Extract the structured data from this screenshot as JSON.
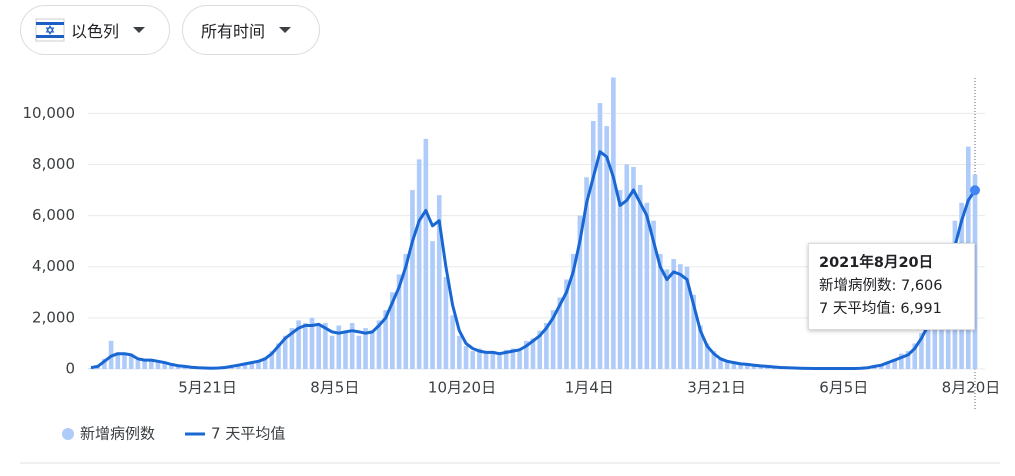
{
  "controls": {
    "region": "以色列",
    "period": "所有时间"
  },
  "chart_data": {
    "type": "bar-line",
    "categories": [
      null,
      null,
      null,
      null,
      null,
      null,
      null,
      null,
      null,
      null,
      null,
      null,
      null,
      null,
      null,
      null,
      null,
      null,
      "5月21日",
      null,
      null,
      null,
      null,
      null,
      null,
      null,
      null,
      null,
      null,
      null,
      null,
      null,
      null,
      null,
      null,
      null,
      null,
      "8月5日",
      null,
      null,
      null,
      null,
      null,
      null,
      null,
      null,
      null,
      null,
      null,
      null,
      null,
      null,
      null,
      null,
      null,
      null,
      "10月20日",
      null,
      null,
      null,
      null,
      null,
      null,
      null,
      null,
      null,
      null,
      null,
      null,
      null,
      null,
      null,
      null,
      null,
      null,
      "1月4日",
      null,
      null,
      null,
      null,
      null,
      null,
      null,
      null,
      null,
      null,
      null,
      null,
      null,
      null,
      null,
      null,
      null,
      null,
      "3月21日",
      null,
      null,
      null,
      null,
      null,
      null,
      null,
      null,
      null,
      null,
      null,
      null,
      null,
      null,
      null,
      null,
      null,
      null,
      "6月5日",
      null,
      null,
      null,
      null,
      null,
      null,
      null,
      null,
      null,
      null,
      null,
      null,
      null,
      null,
      null,
      null,
      null,
      null,
      "8月20日"
    ],
    "series": [
      {
        "name": "新增病例数",
        "type": "bar",
        "color": "#aecbfa",
        "values": [
          30,
          150,
          400,
          1100,
          650,
          550,
          600,
          350,
          400,
          300,
          280,
          220,
          200,
          120,
          90,
          80,
          40,
          30,
          20,
          50,
          70,
          120,
          180,
          230,
          300,
          280,
          450,
          700,
          1000,
          1300,
          1600,
          1900,
          1800,
          2000,
          1700,
          1800,
          1300,
          1700,
          1500,
          1800,
          1300,
          1600,
          1500,
          1900,
          2300,
          3000,
          3700,
          4500,
          7000,
          8200,
          9000,
          5000,
          6800,
          3600,
          2100,
          1300,
          900,
          700,
          800,
          600,
          700,
          550,
          750,
          800,
          700,
          1100,
          1200,
          1500,
          1800,
          2300,
          2800,
          3500,
          4500,
          6000,
          7500,
          9700,
          10400,
          9500,
          11400,
          7000,
          8000,
          7900,
          7200,
          6500,
          5800,
          4500,
          3900,
          4300,
          4100,
          4000,
          2900,
          1700,
          1000,
          700,
          450,
          350,
          300,
          220,
          200,
          160,
          130,
          110,
          90,
          70,
          60,
          45,
          35,
          30,
          25,
          20,
          25,
          20,
          25,
          20,
          25,
          40,
          70,
          120,
          180,
          300,
          400,
          600,
          700,
          1000,
          1400,
          2000,
          2600,
          3500,
          4300,
          5800,
          6500,
          8700,
          7606
        ]
      },
      {
        "name": "7 天平均值",
        "type": "line",
        "color": "#1967d2",
        "values": [
          50,
          100,
          300,
          500,
          600,
          600,
          550,
          400,
          350,
          350,
          300,
          250,
          180,
          130,
          100,
          70,
          50,
          40,
          30,
          40,
          60,
          100,
          150,
          200,
          250,
          300,
          400,
          600,
          900,
          1200,
          1400,
          1600,
          1700,
          1700,
          1750,
          1600,
          1450,
          1400,
          1450,
          1500,
          1450,
          1400,
          1450,
          1700,
          2000,
          2600,
          3200,
          4000,
          5000,
          5800,
          6200,
          5600,
          5800,
          4000,
          2500,
          1500,
          1000,
          800,
          700,
          650,
          650,
          600,
          650,
          700,
          750,
          900,
          1100,
          1300,
          1600,
          2000,
          2500,
          3000,
          3800,
          5000,
          6500,
          7500,
          8500,
          8300,
          7500,
          6400,
          6600,
          7000,
          6500,
          6000,
          5000,
          4000,
          3500,
          3800,
          3700,
          3500,
          2500,
          1500,
          900,
          600,
          400,
          300,
          250,
          200,
          180,
          150,
          120,
          100,
          80,
          60,
          50,
          40,
          30,
          25,
          20,
          20,
          20,
          20,
          20,
          20,
          20,
          30,
          50,
          100,
          150,
          250,
          350,
          450,
          550,
          800,
          1200,
          1700,
          2200,
          2900,
          3700,
          4800,
          5800,
          6600,
          6991
        ]
      }
    ],
    "ylim": [
      0,
      11500
    ],
    "yticks": [
      0,
      {
        "value": 2000,
        "label": "2,000"
      },
      {
        "value": 4000,
        "label": "4,000"
      },
      {
        "value": 6000,
        "label": "6,000"
      },
      {
        "value": 8000,
        "label": "8,000"
      },
      {
        "value": 10000,
        "label": "10,000"
      }
    ],
    "grid": true,
    "tooltip": {
      "date": "2021年8月20日",
      "lines": [
        "新增病例数: 7,606",
        "7 天平均值: 6,991"
      ]
    }
  }
}
